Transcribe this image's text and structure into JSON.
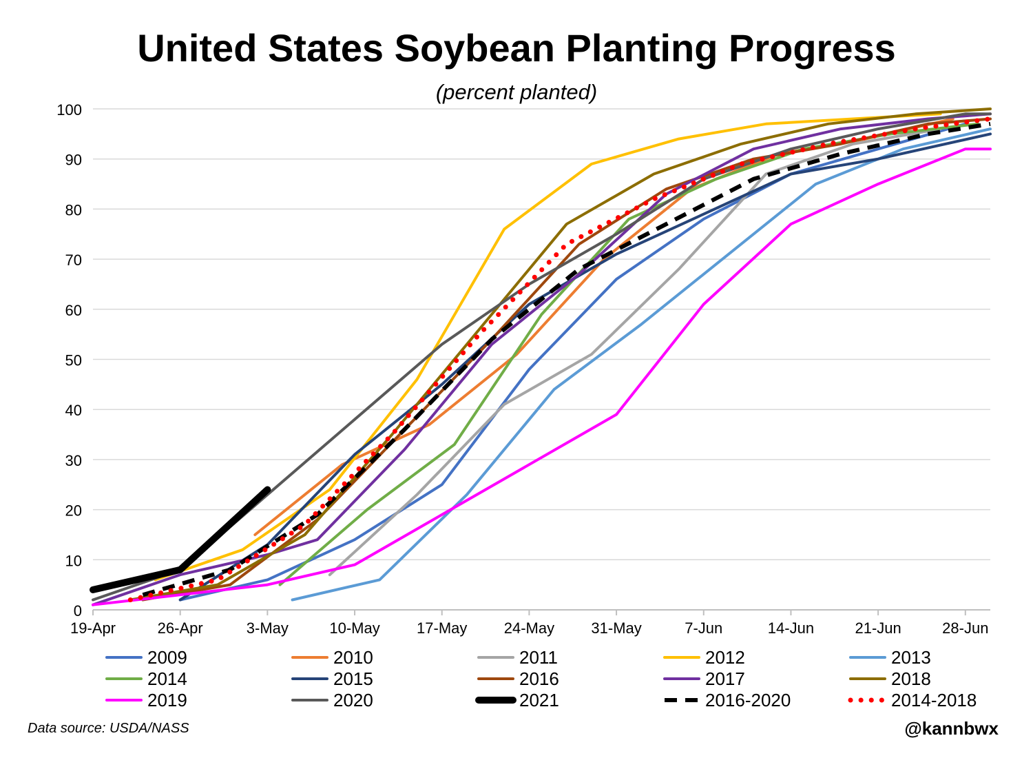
{
  "chart_data": {
    "type": "line",
    "title": "United States Soybean Planting Progress",
    "subtitle": "(percent planted)",
    "xlabel": "",
    "ylabel": "",
    "ylim": [
      0,
      100
    ],
    "yticks": [
      "0",
      "10",
      "20",
      "30",
      "40",
      "50",
      "60",
      "70",
      "80",
      "90",
      "100"
    ],
    "xlim_day": [
      0,
      72
    ],
    "xticks": [
      {
        "day": 0,
        "label": "19-Apr"
      },
      {
        "day": 7,
        "label": "26-Apr"
      },
      {
        "day": 14,
        "label": "3-May"
      },
      {
        "day": 21,
        "label": "10-May"
      },
      {
        "day": 28,
        "label": "17-May"
      },
      {
        "day": 35,
        "label": "24-May"
      },
      {
        "day": 42,
        "label": "31-May"
      },
      {
        "day": 49,
        "label": "7-Jun"
      },
      {
        "day": 56,
        "label": "14-Jun"
      },
      {
        "day": 63,
        "label": "21-Jun"
      },
      {
        "day": 70,
        "label": "28-Jun"
      }
    ],
    "grid": true,
    "legend_position": "bottom",
    "series": [
      {
        "name": "2009",
        "color": "#4472C4",
        "style": "solid",
        "x": [
          7,
          14,
          21,
          28,
          35,
          42,
          49,
          56,
          63,
          70
        ],
        "y": [
          2,
          6,
          14,
          25,
          48,
          66,
          78,
          87,
          92,
          97
        ]
      },
      {
        "name": "2010",
        "color": "#ED7D31",
        "style": "solid",
        "x": [
          13,
          20,
          27,
          34,
          41,
          48,
          55,
          62,
          69
        ],
        "y": [
          15,
          29,
          37,
          51,
          70,
          84,
          91,
          94,
          98
        ]
      },
      {
        "name": "2011",
        "color": "#A5A5A5",
        "style": "solid",
        "x": [
          19,
          26,
          33,
          40,
          47,
          54,
          61,
          68
        ],
        "y": [
          7,
          23,
          41,
          51,
          68,
          87,
          93,
          96
        ]
      },
      {
        "name": "2012",
        "color": "#FFC000",
        "style": "solid",
        "x": [
          5,
          12,
          19,
          26,
          33,
          40,
          47,
          54,
          61,
          68
        ],
        "y": [
          6,
          12,
          24,
          46,
          76,
          89,
          94,
          97,
          98,
          99
        ]
      },
      {
        "name": "2013",
        "color": "#5B9BD5",
        "style": "solid",
        "x": [
          16,
          23,
          30,
          37,
          44,
          51,
          58,
          65,
          72
        ],
        "y": [
          2,
          6,
          23,
          44,
          57,
          71,
          85,
          92,
          96
        ]
      },
      {
        "name": "2014",
        "color": "#70AD47",
        "style": "solid",
        "x": [
          15,
          22,
          29,
          36,
          43,
          50,
          57,
          64,
          71
        ],
        "y": [
          5,
          20,
          33,
          59,
          78,
          86,
          92,
          95,
          97
        ]
      },
      {
        "name": "2015",
        "color": "#264478",
        "style": "solid",
        "x": [
          7,
          14,
          21,
          28,
          35,
          42,
          49,
          56,
          63,
          72
        ],
        "y": [
          2,
          13,
          31,
          45,
          61,
          71,
          79,
          87,
          90,
          95
        ]
      },
      {
        "name": "2016",
        "color": "#9E480E",
        "style": "solid",
        "x": [
          4,
          11,
          18,
          25,
          32,
          39,
          46,
          53,
          60,
          67,
          72
        ],
        "y": [
          2,
          5,
          18,
          36,
          54,
          73,
          84,
          90,
          93,
          97,
          98
        ]
      },
      {
        "name": "2017",
        "color": "#7030A0",
        "style": "solid",
        "x": [
          0,
          7,
          14,
          18,
          25,
          32,
          39,
          46,
          53,
          60,
          67,
          72
        ],
        "y": [
          1,
          7,
          11,
          14,
          32,
          53,
          67,
          83,
          92,
          96,
          98,
          99
        ]
      },
      {
        "name": "2018",
        "color": "#8C6D00",
        "style": "solid",
        "x": [
          3,
          10,
          17,
          24,
          31,
          38,
          45,
          52,
          59,
          66,
          72
        ],
        "y": [
          2,
          5,
          15,
          35,
          56,
          77,
          87,
          93,
          97,
          99,
          100
        ]
      },
      {
        "name": "2019",
        "color": "#FF00FF",
        "style": "solid",
        "x": [
          0,
          7,
          14,
          21,
          28,
          35,
          42,
          49,
          56,
          63,
          70,
          72
        ],
        "y": [
          1,
          3,
          5,
          9,
          19,
          29,
          39,
          61,
          77,
          85,
          92,
          92
        ]
      },
      {
        "name": "2020",
        "color": "#595959",
        "style": "solid",
        "x": [
          0,
          7,
          14,
          21,
          28,
          35,
          42,
          49,
          56,
          63,
          70,
          72
        ],
        "y": [
          2,
          8,
          23,
          38,
          53,
          65,
          75,
          86,
          92,
          96,
          99,
          99
        ]
      },
      {
        "name": "2021",
        "color": "#000000",
        "style": "thick",
        "x": [
          0,
          7,
          14
        ],
        "y": [
          4,
          8,
          24
        ]
      },
      {
        "name": "2016-2020",
        "color": "#000000",
        "style": "dashed",
        "x": [
          4,
          11,
          18,
          25,
          32,
          39,
          46,
          53,
          60,
          67,
          72
        ],
        "y": [
          3,
          8,
          19,
          36,
          54,
          68,
          77,
          86,
          91,
          95,
          97
        ]
      },
      {
        "name": "2014-2018",
        "color": "#FF0000",
        "style": "dotted",
        "x": [
          3,
          10,
          17,
          24,
          31,
          38,
          45,
          52,
          59,
          66,
          72
        ],
        "y": [
          2,
          6,
          17,
          35,
          55,
          73,
          82,
          89,
          93,
          96,
          98
        ]
      }
    ]
  },
  "footer": {
    "source": "Data source: USDA/NASS",
    "handle": "@kannbwx"
  }
}
